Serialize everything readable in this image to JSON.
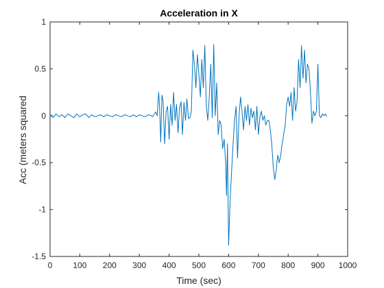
{
  "chart_data": {
    "type": "line",
    "title": "Acceleration in X",
    "xlabel": "Time (sec)",
    "ylabel": "Acc (meters squared",
    "xlim": [
      0,
      1000
    ],
    "ylim": [
      -1.5,
      1
    ],
    "xticks": [
      0,
      100,
      200,
      300,
      400,
      500,
      600,
      700,
      800,
      900,
      1000
    ],
    "yticks": [
      -1.5,
      -1,
      -0.5,
      0,
      0.5,
      1
    ],
    "ytick_labels": [
      "-1.5",
      "-1",
      "-0.5",
      "0",
      "0.5",
      "1"
    ],
    "grid": false,
    "series": [
      {
        "color": "#0072BD",
        "x": [
          2,
          10,
          20,
          30,
          40,
          50,
          60,
          70,
          80,
          90,
          100,
          110,
          120,
          130,
          140,
          150,
          160,
          170,
          180,
          190,
          200,
          210,
          220,
          230,
          240,
          250,
          260,
          270,
          280,
          290,
          300,
          310,
          320,
          330,
          340,
          345,
          350,
          355,
          360,
          365,
          368,
          372,
          376,
          380,
          385,
          390,
          395,
          400,
          405,
          410,
          415,
          420,
          425,
          430,
          435,
          440,
          445,
          450,
          455,
          460,
          465,
          470,
          475,
          480,
          485,
          490,
          495,
          500,
          505,
          510,
          515,
          520,
          525,
          530,
          535,
          540,
          545,
          550,
          555,
          560,
          565,
          570,
          575,
          580,
          585,
          590,
          593,
          596,
          600,
          605,
          610,
          615,
          620,
          625,
          630,
          635,
          640,
          645,
          650,
          655,
          660,
          665,
          670,
          675,
          680,
          685,
          690,
          695,
          700,
          705,
          710,
          715,
          720,
          725,
          730,
          735,
          740,
          745,
          750,
          755,
          760,
          765,
          770,
          775,
          780,
          785,
          790,
          795,
          800,
          805,
          810,
          815,
          820,
          825,
          830,
          835,
          840,
          845,
          850,
          855,
          860,
          865,
          870,
          875,
          880,
          885,
          890,
          895,
          900,
          905,
          910,
          915,
          920,
          925,
          930
        ],
        "values": [
          0.01,
          -0.02,
          0.02,
          -0.01,
          0.01,
          -0.02,
          0.02,
          0.0,
          -0.02,
          0.02,
          -0.01,
          0.01,
          0.02,
          -0.02,
          0.01,
          -0.01,
          0.0,
          0.01,
          -0.01,
          0.01,
          0.0,
          -0.01,
          0.01,
          0.0,
          -0.01,
          0.01,
          0.0,
          -0.01,
          0.01,
          -0.01,
          0.01,
          0.0,
          -0.01,
          0.01,
          0.0,
          -0.01,
          0.02,
          0.04,
          0.0,
          0.25,
          0.1,
          -0.28,
          0.22,
          0.15,
          -0.3,
          0.05,
          0.1,
          -0.25,
          0.12,
          -0.1,
          0.25,
          -0.05,
          0.12,
          -0.18,
          0.08,
          0.15,
          -0.2,
          0.14,
          -0.05,
          0.18,
          -0.03,
          -0.02,
          0.05,
          0.7,
          0.55,
          0.3,
          0.65,
          0.45,
          0.2,
          0.6,
          0.3,
          0.75,
          0.1,
          -0.05,
          0.2,
          0.55,
          -0.02,
          0.76,
          0.0,
          0.35,
          -0.2,
          -0.05,
          -0.1,
          -0.35,
          -0.25,
          -0.5,
          -0.85,
          -0.3,
          -1.38,
          -0.9,
          -0.6,
          -0.3,
          -0.05,
          0.1,
          -0.45,
          0.0,
          0.2,
          0.05,
          -0.15,
          0.1,
          -0.05,
          0.12,
          -0.1,
          0.08,
          -0.02,
          0.05,
          -0.15,
          0.1,
          -0.2,
          -0.02,
          0.05,
          -0.05,
          0.0,
          -0.1,
          -0.05,
          -0.05,
          -0.15,
          -0.3,
          -0.55,
          -0.68,
          -0.58,
          -0.42,
          -0.5,
          -0.42,
          -0.3,
          -0.2,
          -0.1,
          0.12,
          0.2,
          0.1,
          0.25,
          -0.05,
          0.3,
          0.05,
          0.15,
          0.6,
          0.3,
          0.75,
          0.4,
          0.7,
          0.35,
          0.55,
          0.5,
          0.25,
          -0.08,
          0.05,
          0.0,
          0.05,
          0.55,
          0.0,
          -0.02,
          0.02,
          0.0,
          0.02,
          -0.01
        ]
      }
    ]
  }
}
